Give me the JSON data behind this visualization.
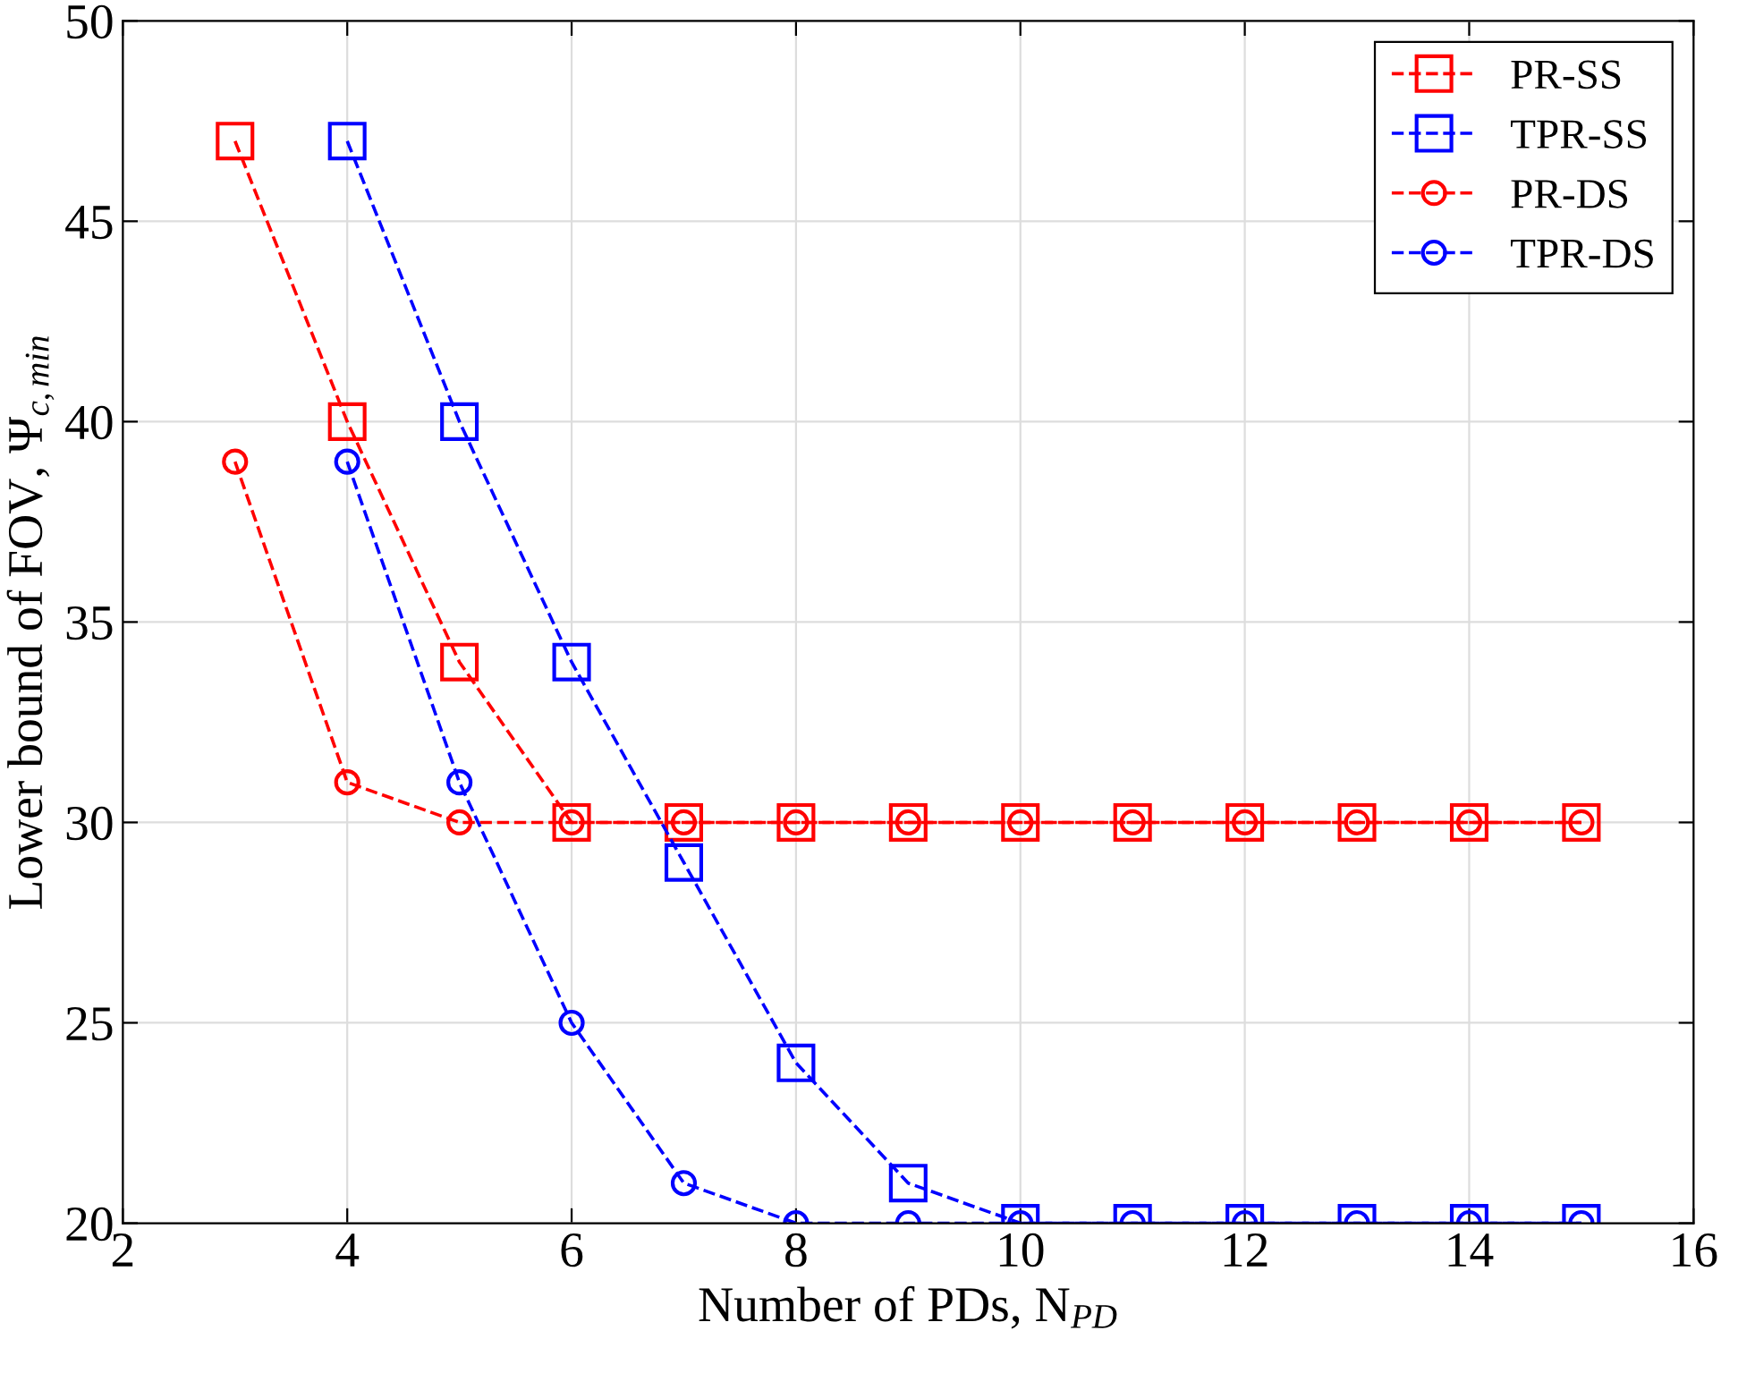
{
  "chart_data": {
    "type": "line",
    "xlabel": "Number of PDs, N$_{PD}$",
    "ylabel": "Lower bound of FOV, Ψ$_{c,min}$",
    "xlim": [
      2,
      16
    ],
    "xticks": [
      2,
      4,
      6,
      8,
      10,
      12,
      14,
      16
    ],
    "ylim": [
      20,
      50
    ],
    "yticks": [
      20,
      25,
      30,
      35,
      40,
      45,
      50
    ],
    "grid": true,
    "legend": "top right",
    "line_style": "dashed",
    "series": [
      {
        "name": "PR-SS",
        "color": "#ff0000",
        "marker": "square",
        "x": [
          3,
          4,
          5,
          6,
          7,
          8,
          9,
          10,
          11,
          12,
          13,
          14,
          15
        ],
        "values": [
          47,
          40,
          34,
          30,
          30,
          30,
          30,
          30,
          30,
          30,
          30,
          30,
          30
        ]
      },
      {
        "name": "TPR-SS",
        "color": "#0000ff",
        "marker": "square",
        "x": [
          4,
          5,
          6,
          7,
          8,
          9,
          10,
          11,
          12,
          13,
          14,
          15
        ],
        "values": [
          47,
          40,
          34,
          29,
          24,
          21,
          20,
          20,
          20,
          20,
          20,
          20
        ]
      },
      {
        "name": "PR-DS",
        "color": "#ff0000",
        "marker": "circle",
        "x": [
          3,
          4,
          5,
          6,
          7,
          8,
          9,
          10,
          11,
          12,
          13,
          14,
          15
        ],
        "values": [
          39,
          31,
          30,
          30,
          30,
          30,
          30,
          30,
          30,
          30,
          30,
          30,
          30
        ]
      },
      {
        "name": "TPR-DS",
        "color": "#0000ff",
        "marker": "circle",
        "x": [
          4,
          5,
          6,
          7,
          8,
          9,
          10,
          11,
          12,
          13,
          14,
          15
        ],
        "values": [
          39,
          31,
          25,
          21,
          20,
          20,
          20,
          20,
          20,
          20,
          20,
          20
        ]
      }
    ]
  }
}
